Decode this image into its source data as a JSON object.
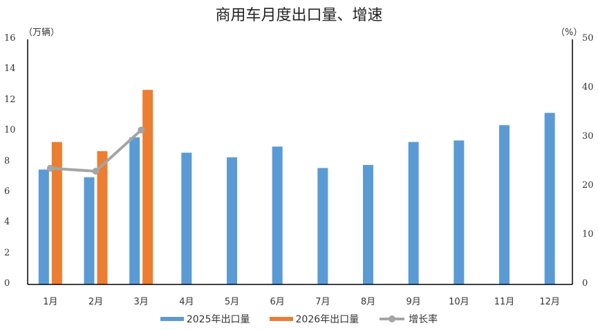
{
  "chart_data": {
    "type": "bar",
    "title": "商用车月度出口量、增速",
    "categories": [
      "1月",
      "2月",
      "3月",
      "4月",
      "5月",
      "6月",
      "7月",
      "8月",
      "9月",
      "10月",
      "11月",
      "12月"
    ],
    "series": [
      {
        "name": "2025年出口量",
        "type": "bar",
        "axis": "left",
        "color": "#5B9BD5",
        "values": [
          7.5,
          7.0,
          9.6,
          8.6,
          8.3,
          9.0,
          7.6,
          7.8,
          9.3,
          9.4,
          10.4,
          11.2
        ]
      },
      {
        "name": "2026年出口量",
        "type": "bar",
        "axis": "left",
        "color": "#ED7D31",
        "values": [
          9.3,
          8.7,
          12.7,
          null,
          null,
          null,
          null,
          null,
          null,
          null,
          null,
          null
        ]
      },
      {
        "name": "增长率",
        "type": "line",
        "axis": "right",
        "color": "#A5A5A5",
        "values": [
          23.7,
          23.1,
          31.5,
          null,
          null,
          null,
          null,
          null,
          null,
          null,
          null,
          null
        ]
      }
    ],
    "ylabel": "（万辆）",
    "ylabel_right": "（%）",
    "ylim": [
      0,
      16
    ],
    "ylim_right": [
      0,
      50
    ],
    "yticks": [
      0,
      2,
      4,
      6,
      8,
      10,
      12,
      14,
      16
    ],
    "yticks_right": [
      0,
      10,
      20,
      30,
      40,
      50
    ],
    "grid": false,
    "legend_position": "bottom"
  },
  "title": "商用车月度出口量、增速",
  "left_unit": "（万辆）",
  "right_unit": "（%）",
  "legend": {
    "s2025": "2025年出口量",
    "s2026": "2026年出口量",
    "growth": "增长率"
  }
}
